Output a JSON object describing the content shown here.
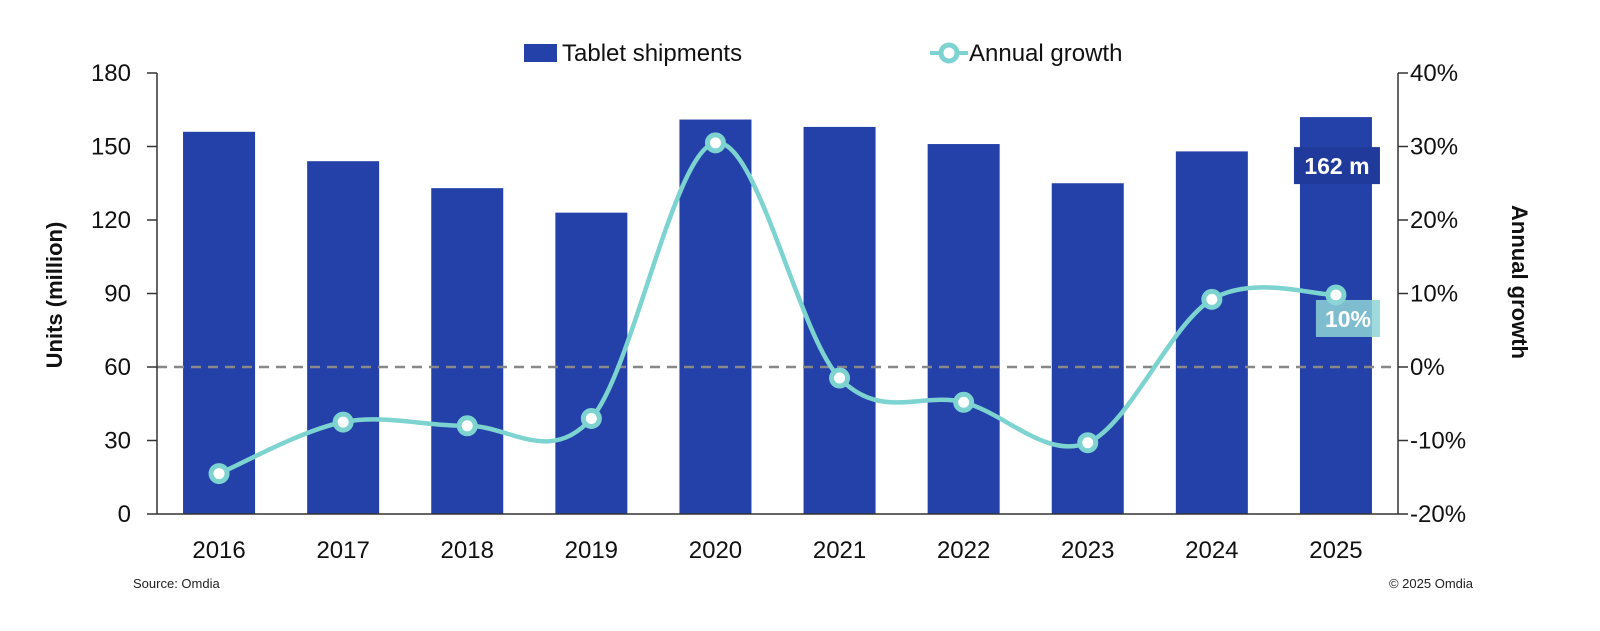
{
  "chart_data": {
    "type": "bar",
    "title": "",
    "categories": [
      "2016",
      "2017",
      "2018",
      "2019",
      "2020",
      "2021",
      "2022",
      "2023",
      "2024",
      "2025"
    ],
    "series": [
      {
        "name": "Tablet shipments",
        "type": "bar",
        "axis": "left",
        "values": [
          156,
          144,
          133,
          123,
          161,
          158,
          151,
          135,
          148,
          162
        ]
      },
      {
        "name": "Annual growth",
        "type": "line",
        "axis": "right",
        "values": [
          -14.5,
          -7.5,
          -8,
          -7,
          30.5,
          -1.5,
          -4.8,
          -10.3,
          9.2,
          9.8
        ]
      }
    ],
    "ylabel": "Units (million)",
    "y2label": "Annual growth",
    "ylim": [
      0,
      180
    ],
    "y2lim": [
      -20,
      40
    ],
    "yticks": [
      "0",
      "30",
      "60",
      "90",
      "120",
      "150",
      "180"
    ],
    "y2ticks": [
      "-20%",
      "-10%",
      "0%",
      "10%",
      "20%",
      "30%",
      "40%"
    ],
    "reference_line": {
      "axis": "right",
      "value": 0,
      "style": "dashed"
    },
    "annotations": [
      {
        "label": "162 m",
        "category": "2025",
        "series": "Tablet shipments"
      },
      {
        "label": "10%",
        "category": "2025",
        "series": "Annual growth"
      }
    ],
    "legend_position": "top-center",
    "colors": {
      "bars": "#2341a8",
      "line": "#7dd3d0",
      "grid_line": "#888888",
      "callout_bar_bg": "#1f3a9a",
      "callout_line_bg": "#8ed3d6"
    }
  },
  "footer": {
    "source": "Source: Omdia",
    "copyright": "© 2025 Omdia"
  }
}
